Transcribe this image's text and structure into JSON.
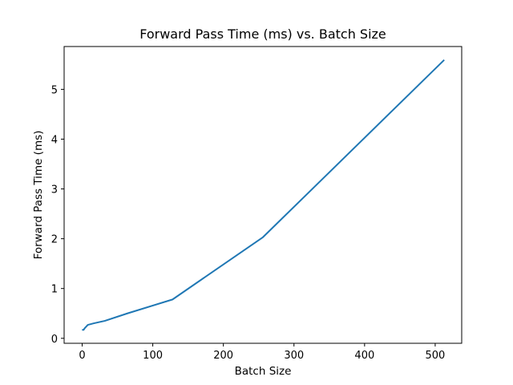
{
  "chart_data": {
    "type": "line",
    "title": "Forward Pass Time (ms) vs. Batch Size",
    "xlabel": "Batch Size",
    "ylabel": "Forward Pass Time (ms)",
    "xlim": [
      -25.55,
      537.55
    ],
    "ylim": [
      -0.1,
      5.86
    ],
    "x_ticks": [
      0,
      100,
      200,
      300,
      400,
      500
    ],
    "y_ticks": [
      0,
      1,
      2,
      3,
      4,
      5
    ],
    "grid": false,
    "legend": "none",
    "series": [
      {
        "color": "#1f77b4",
        "x": [
          1,
          2,
          4,
          8,
          16,
          32,
          64,
          128,
          256,
          512
        ],
        "y": [
          0.17,
          0.17,
          0.21,
          0.27,
          0.3,
          0.35,
          0.5,
          0.78,
          2.03,
          5.58
        ]
      }
    ]
  }
}
